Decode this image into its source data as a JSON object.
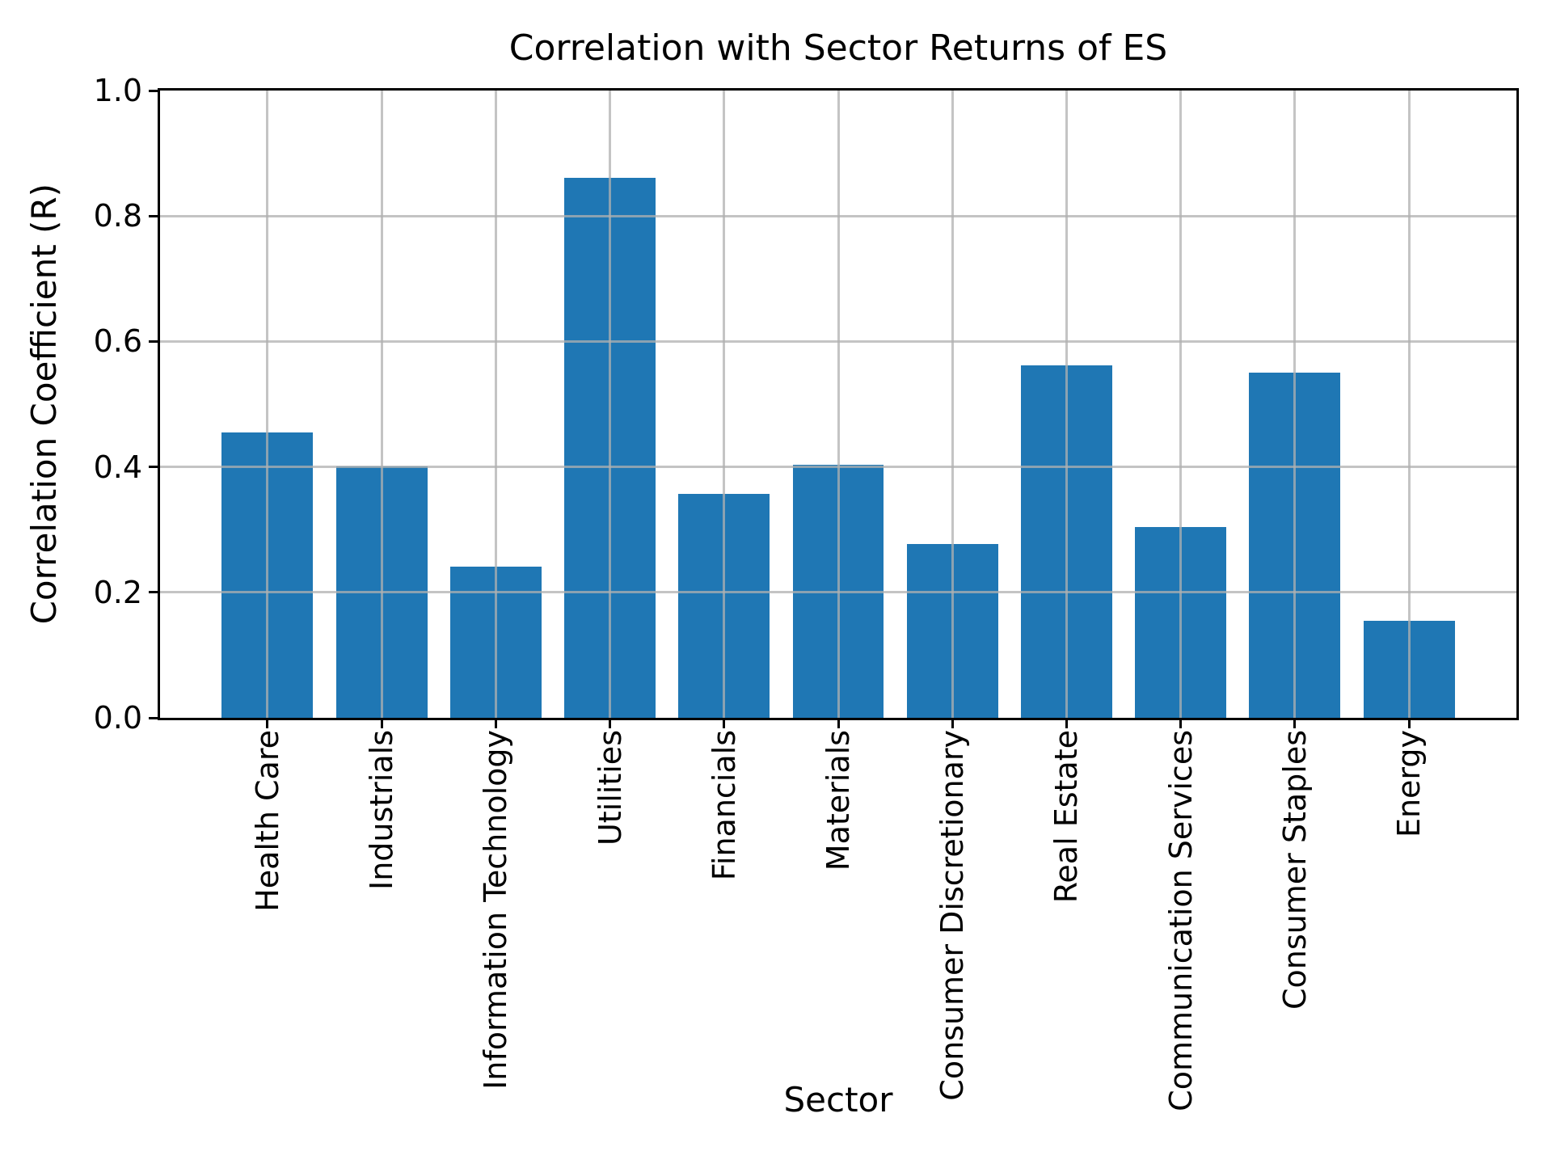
{
  "chart_data": {
    "type": "bar",
    "title": "Correlation with Sector Returns of ES",
    "xlabel": "Sector",
    "ylabel": "Correlation Coefficient (R)",
    "categories": [
      "Health Care",
      "Industrials",
      "Information Technology",
      "Utilities",
      "Financials",
      "Materials",
      "Consumer Discretionary",
      "Real Estate",
      "Communication Services",
      "Consumer Staples",
      "Energy"
    ],
    "values": [
      0.455,
      0.401,
      0.241,
      0.861,
      0.357,
      0.403,
      0.277,
      0.562,
      0.304,
      0.55,
      0.155
    ],
    "ylim": [
      0.0,
      1.0
    ],
    "yticks": [
      0.0,
      0.2,
      0.4,
      0.6,
      0.8,
      1.0
    ],
    "ytick_labels": [
      "0.0",
      "0.2",
      "0.4",
      "0.6",
      "0.8",
      "1.0"
    ],
    "xtick_rotation": 90,
    "grid": true,
    "legend": "none",
    "bar_color": "#1f77b4",
    "grid_color": "#b0b0b0",
    "axis_color": "#000000",
    "background_color": "#ffffff"
  }
}
